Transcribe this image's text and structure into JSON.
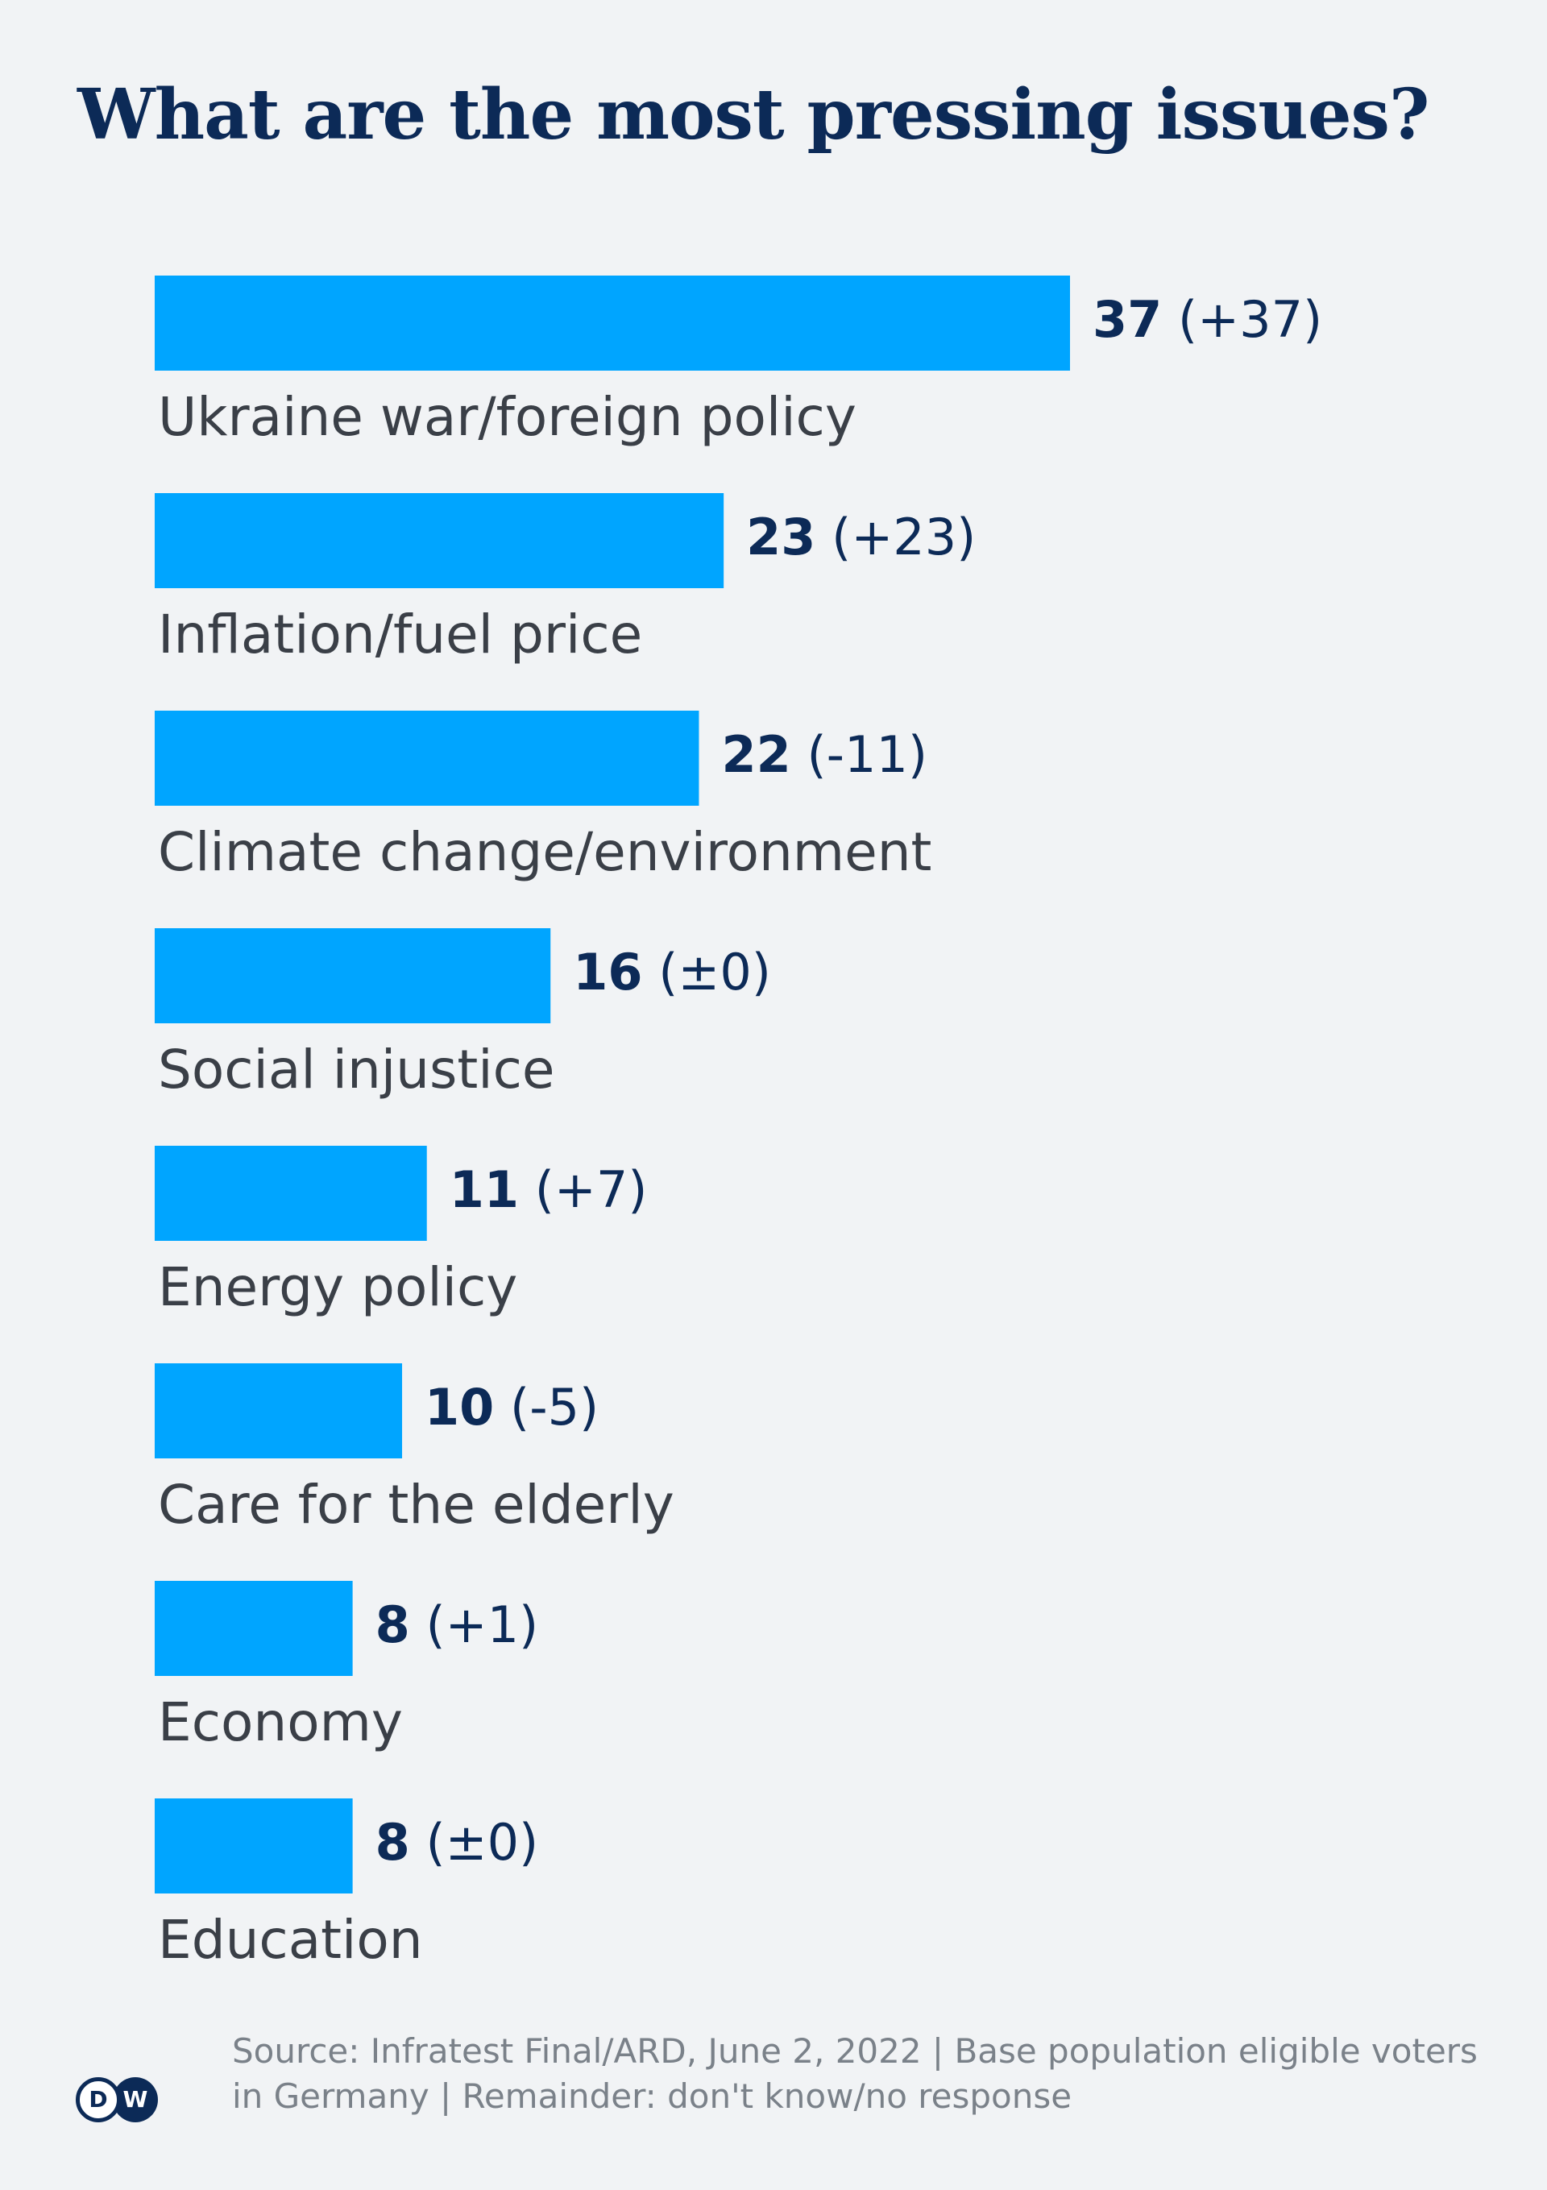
{
  "chart_data": {
    "type": "bar",
    "orientation": "horizontal",
    "title": "What are the most pressing issues?",
    "categories": [
      "Ukraine war/foreign policy",
      "Inflation/fuel price",
      "Climate change/environment",
      "Social injustice",
      "Energy policy",
      "Care for the elderly",
      "Economy",
      "Education"
    ],
    "values": [
      37,
      23,
      22,
      16,
      11,
      10,
      8,
      8
    ],
    "changes": [
      "(+37)",
      "(+23)",
      "(-11)",
      "(±0)",
      "(+7)",
      "(-5)",
      "(+1)",
      "(±0)"
    ],
    "xlim": [
      0,
      37
    ],
    "grid": false,
    "legend": "none",
    "bar_color": "#00a5ff"
  },
  "footer": {
    "source": "Source: Infratest Final/ARD, June 2, 2022 | Base population eligible voters in Germany | Remainder: don't know/no response",
    "logo_left": "D",
    "logo_right": "W"
  },
  "colors": {
    "background": "#f1f3f5",
    "title": "#0c2a57",
    "label": "#3a3f47",
    "source": "#7a8189"
  }
}
